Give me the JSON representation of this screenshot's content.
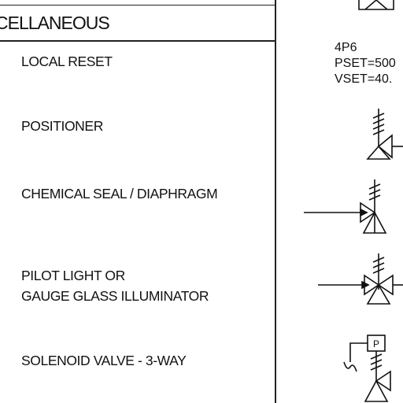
{
  "table": {
    "header": "CELLANEOUS",
    "rows": [
      {
        "label": "LOCAL RESET"
      },
      {
        "label": "POSITIONER"
      },
      {
        "label": "CHEMICAL SEAL / DIAPHRAGM"
      },
      {
        "label_line1": "PILOT LIGHT OR",
        "label_line2": "GAUGE GLASS ILLUMINATOR"
      },
      {
        "label": "SOLENOID VALVE - 3-WAY"
      }
    ]
  },
  "annotation": {
    "line1": "4P6",
    "line2": "PSET=500",
    "line3": "VSET=40."
  },
  "symbols": {
    "solenoid_tag": "P"
  }
}
